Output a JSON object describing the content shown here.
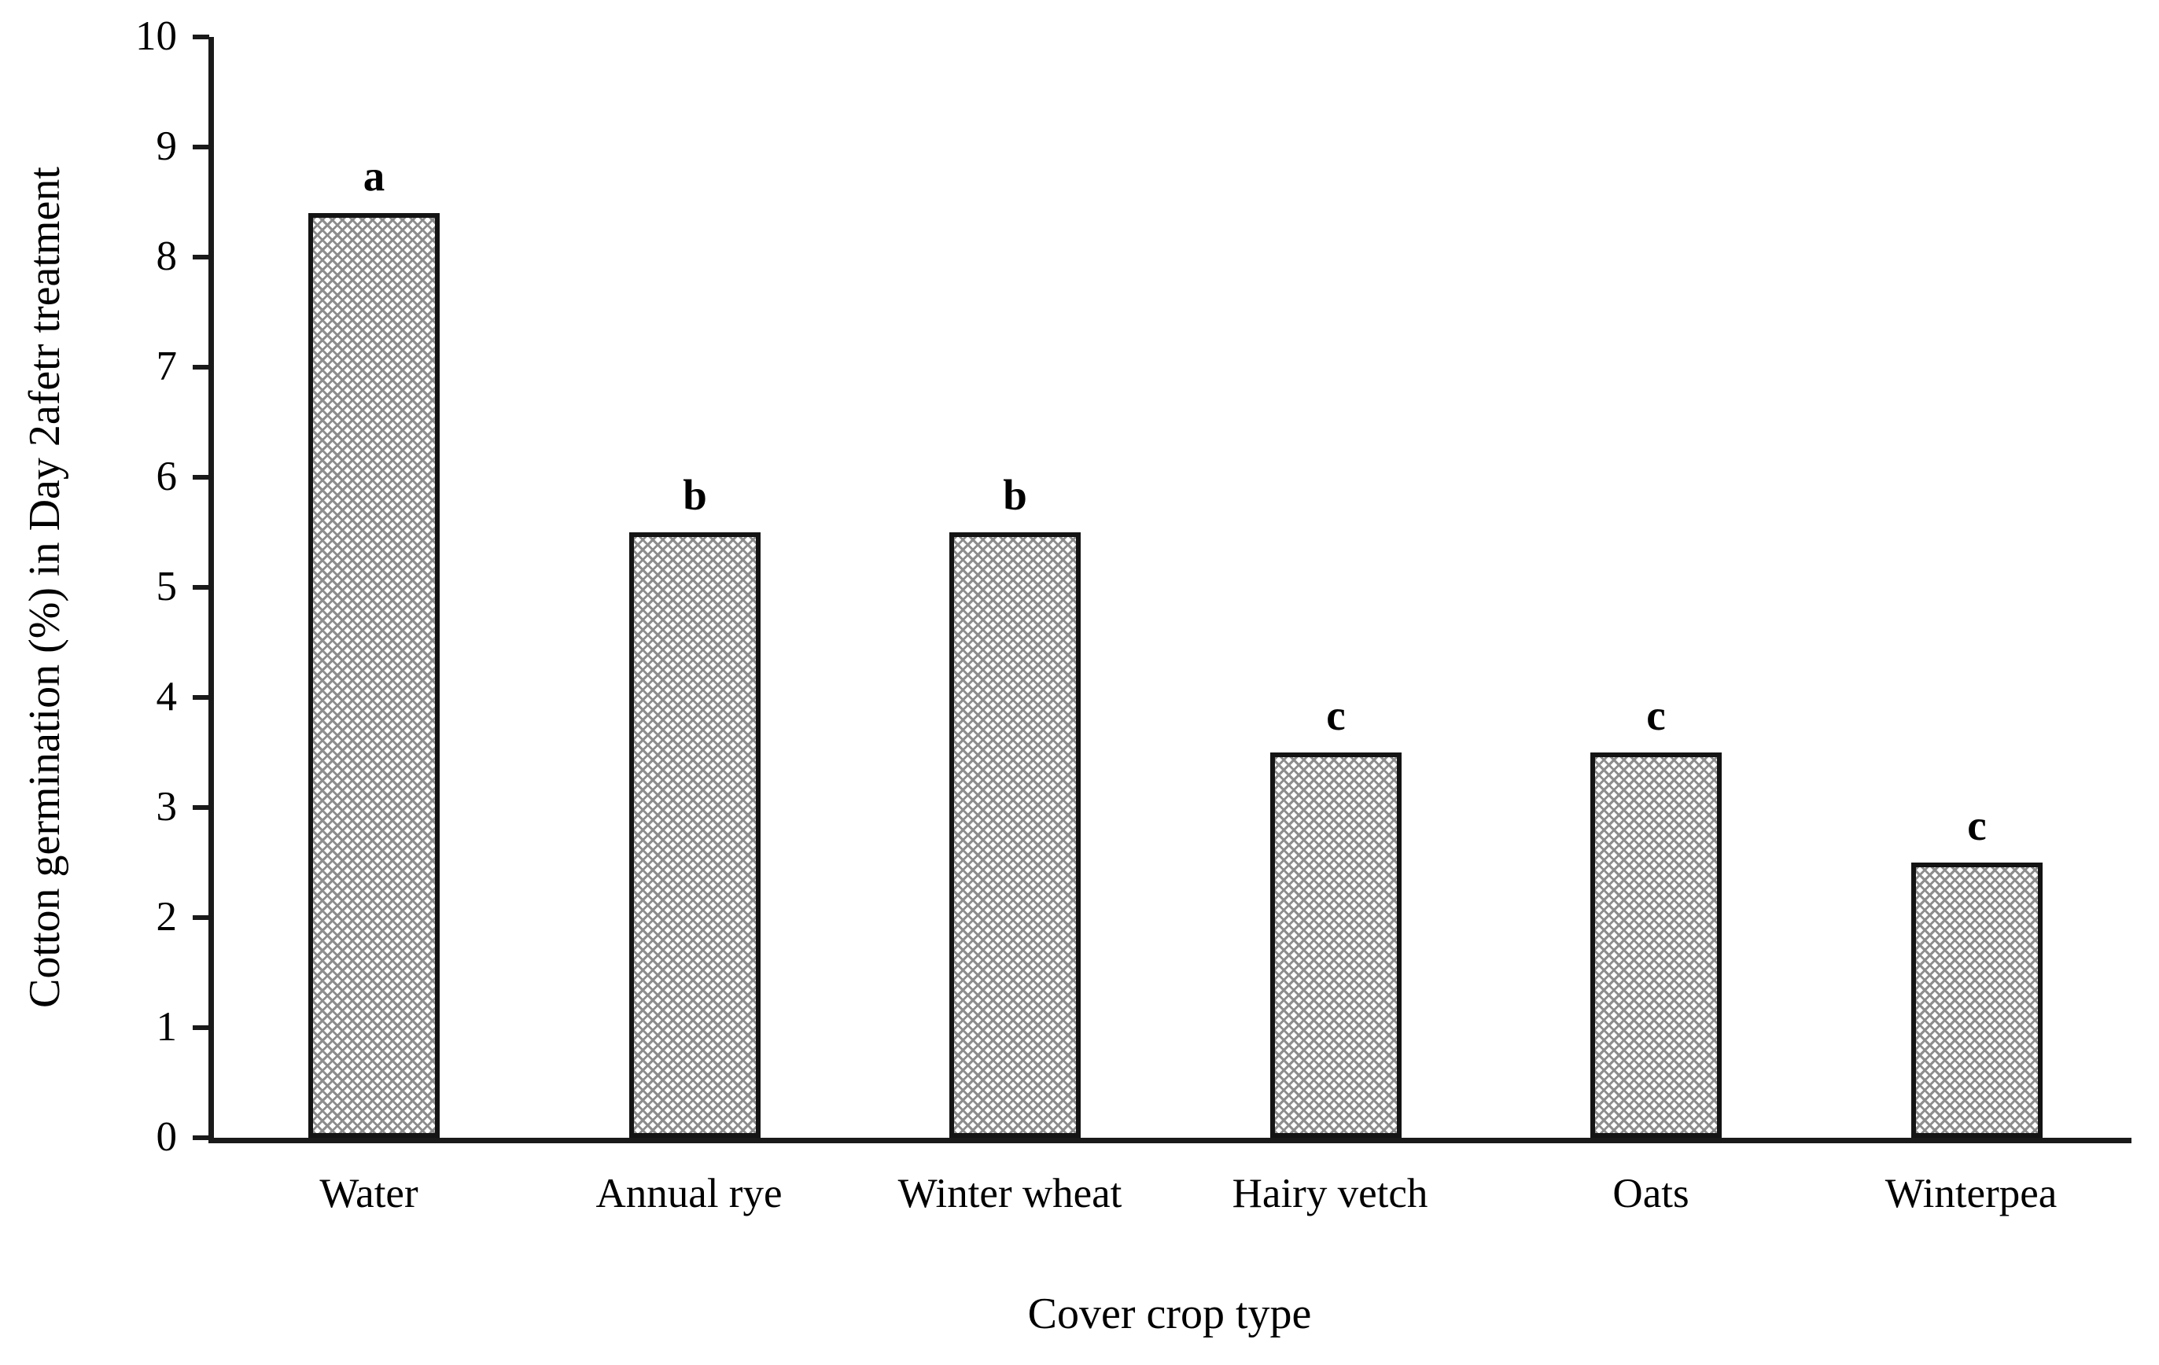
{
  "chart_data": {
    "type": "bar",
    "title": "",
    "xlabel": "Cover crop type",
    "ylabel": "Cotton germination (%) in Day 2afetr treatment",
    "categories": [
      "Water",
      "Annual rye",
      "Winter wheat",
      "Hairy vetch",
      "Oats",
      "Winterpea"
    ],
    "values": [
      8.4,
      5.5,
      5.5,
      3.5,
      3.5,
      2.5
    ],
    "significance_letters": [
      "a",
      "b",
      "b",
      "c",
      "c",
      "c"
    ],
    "ylim": [
      0,
      10
    ],
    "yticks": [
      0,
      1,
      2,
      3,
      4,
      5,
      6,
      7,
      8,
      9,
      10
    ],
    "grid": false,
    "legend_position": "none",
    "colors": {
      "axis": "#1a1a1a",
      "bar_outline": "#141414",
      "bar_pattern": "#8d8d8d",
      "bar_background": "#ffffff",
      "text": "#000000"
    },
    "bar_fill_style": "dotted-diamond-pattern"
  }
}
